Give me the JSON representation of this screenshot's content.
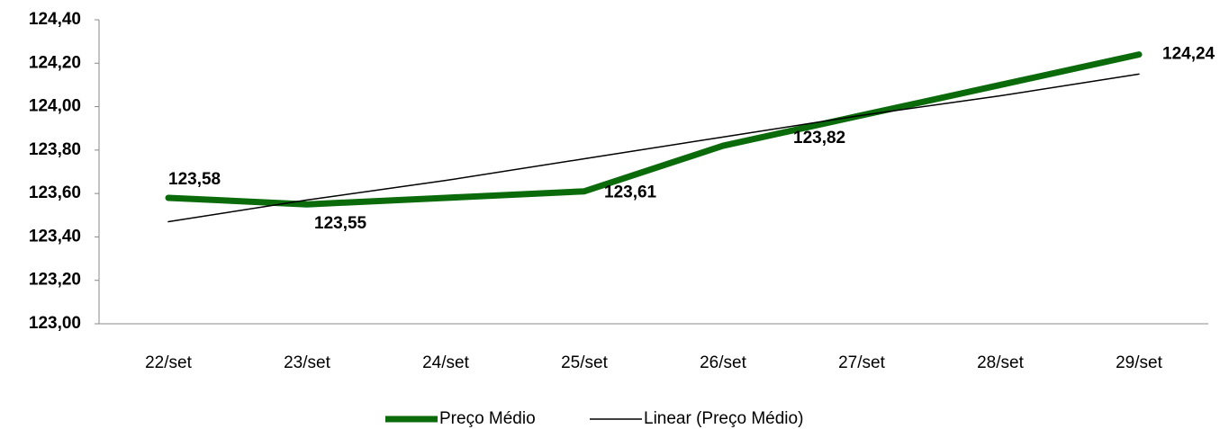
{
  "chart_data": {
    "type": "line",
    "categories": [
      "22/set",
      "23/set",
      "24/set",
      "25/set",
      "26/set",
      "27/set",
      "28/set",
      "29/set"
    ],
    "series": [
      {
        "name": "Preço Médio",
        "color": "#0b6b0b",
        "values": [
          123.58,
          123.55,
          123.58,
          123.61,
          123.82,
          123.96,
          124.1,
          124.24
        ],
        "value_labels": [
          "123,58",
          "123,55",
          null,
          "123,61",
          "123,82",
          null,
          null,
          "124,24"
        ]
      },
      {
        "name": "Linear (Preço Médio)",
        "color": "#000000",
        "values": [
          123.47,
          123.57,
          123.66,
          123.76,
          123.86,
          123.96,
          124.05,
          124.15
        ]
      }
    ],
    "ylim": [
      123,
      124.4
    ],
    "yticks": [
      {
        "value": 123,
        "label": "123,00"
      },
      {
        "value": 123.2,
        "label": "123,20"
      },
      {
        "value": 123.4,
        "label": "123,40"
      },
      {
        "value": 123.6,
        "label": "123,60"
      },
      {
        "value": 123.8,
        "label": "123,80"
      },
      {
        "value": 124,
        "label": "124,00"
      },
      {
        "value": 124.2,
        "label": "124,20"
      },
      {
        "value": 124.4,
        "label": "124,40"
      }
    ],
    "grid": false,
    "legend": "bottom"
  }
}
